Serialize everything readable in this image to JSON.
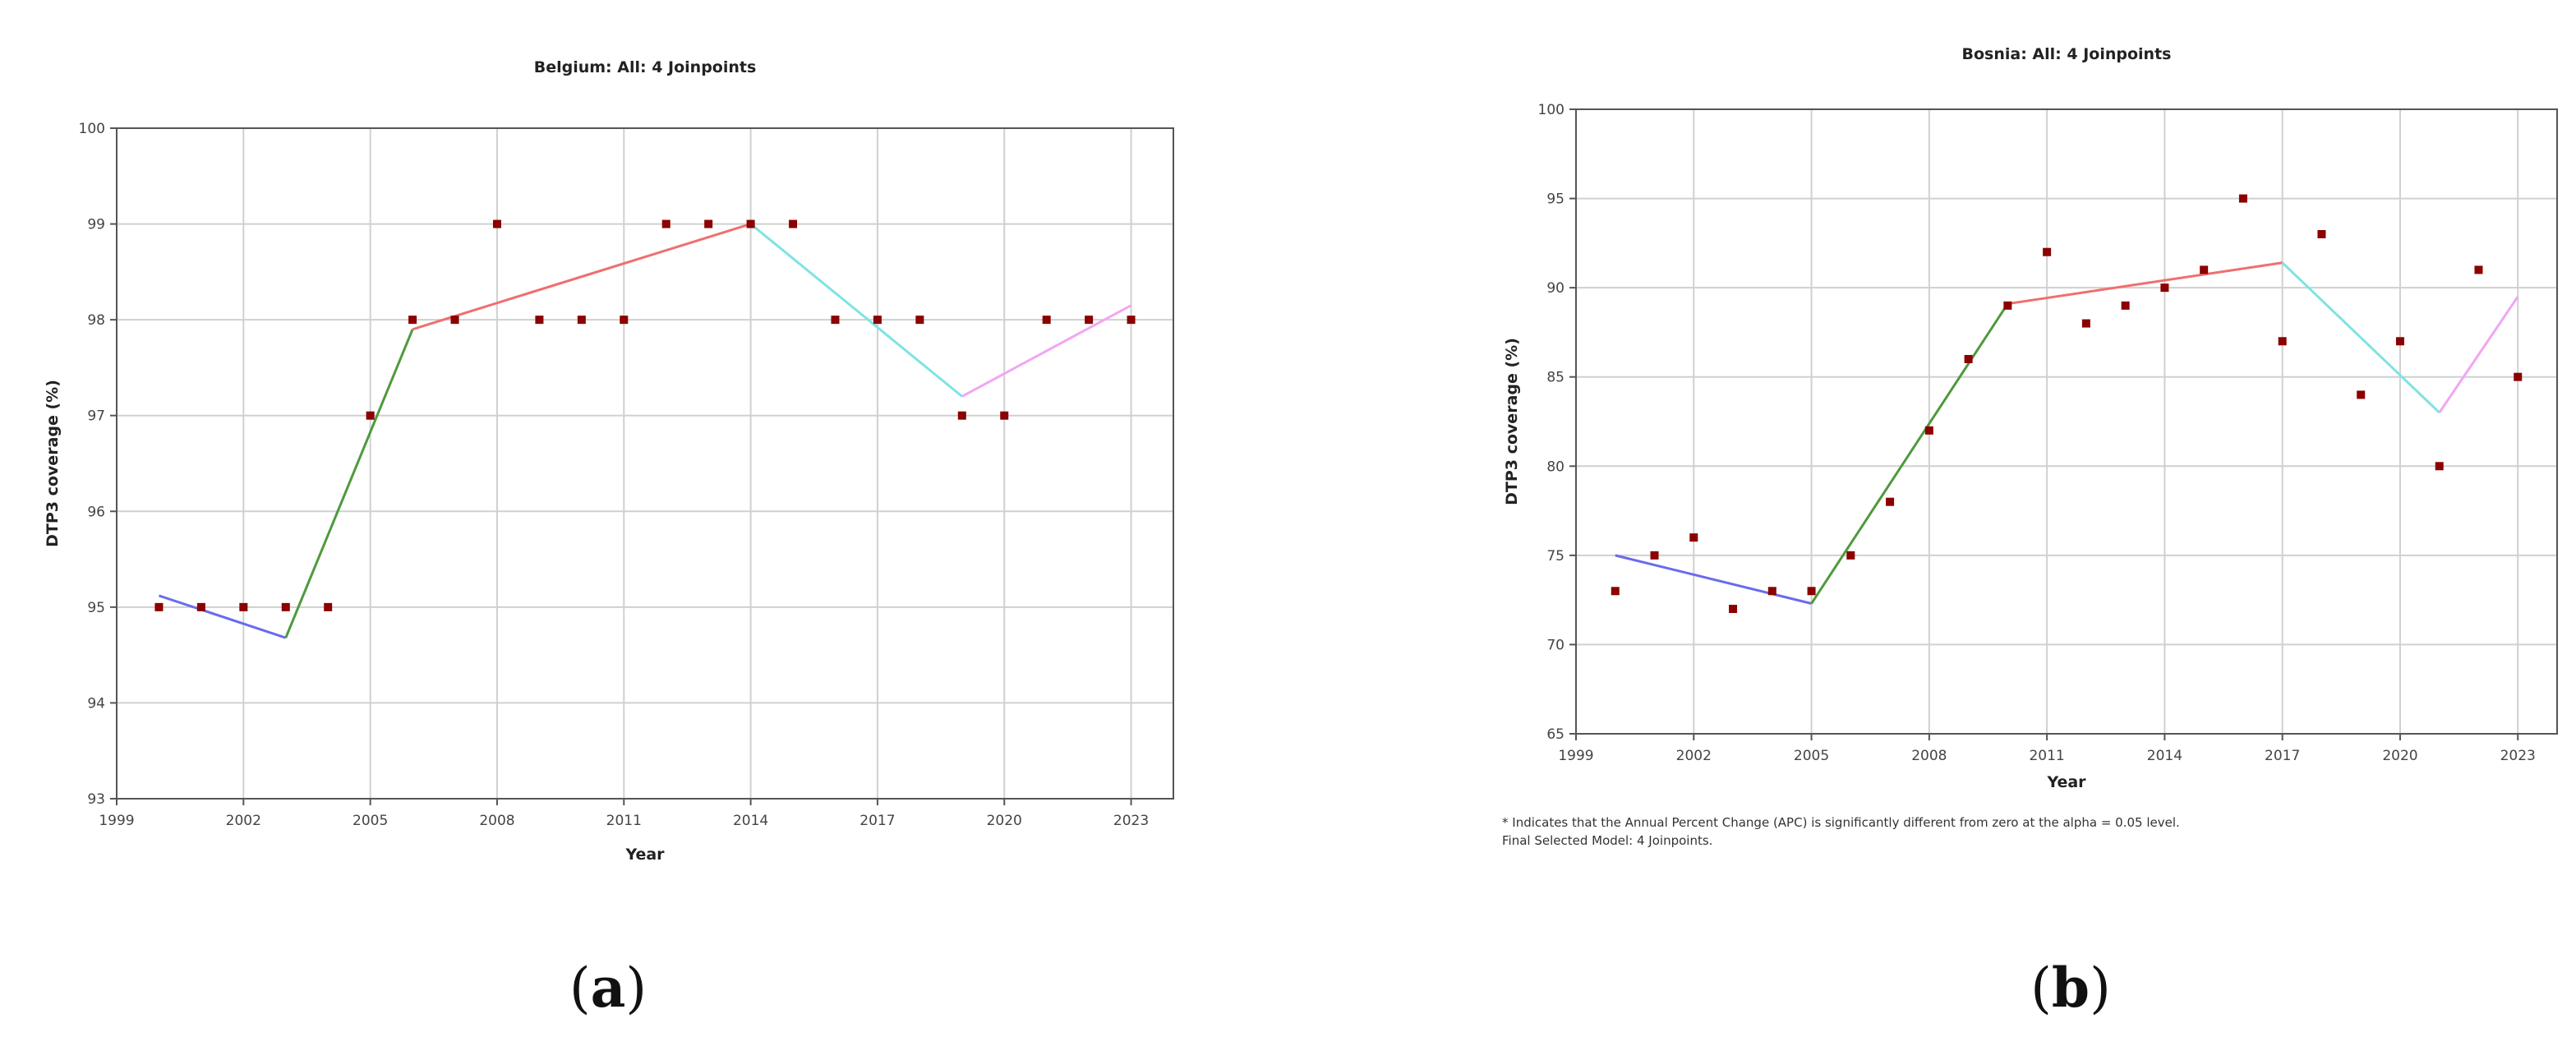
{
  "chart_data": [
    {
      "type": "scatter",
      "title": "Belgium: All: 4 Joinpoints",
      "xlabel": "Year",
      "ylabel": "DTP3 coverage (%)",
      "xlim": [
        1999,
        2024
      ],
      "ylim": [
        93,
        100
      ],
      "xticks": [
        "1999",
        "2002",
        "2005",
        "2008",
        "2011",
        "2014",
        "2017",
        "2020",
        "2023"
      ],
      "yticks": [
        "93",
        "94",
        "95",
        "96",
        "97",
        "98",
        "99",
        "100"
      ],
      "grid": true,
      "points": {
        "color": "#8b0000",
        "x": [
          2000,
          2001,
          2002,
          2003,
          2004,
          2005,
          2006,
          2007,
          2008,
          2009,
          2010,
          2011,
          2012,
          2013,
          2014,
          2015,
          2016,
          2017,
          2018,
          2019,
          2020,
          2021,
          2022,
          2023
        ],
        "y": [
          95,
          95,
          95,
          95,
          95,
          97,
          98,
          98,
          99,
          98,
          98,
          98,
          99,
          99,
          99,
          99,
          98,
          98,
          98,
          97,
          97,
          98,
          98,
          98
        ]
      },
      "segments": [
        {
          "color": "#6a6aee",
          "x": [
            2000,
            2003
          ],
          "y": [
            95.12,
            94.68
          ]
        },
        {
          "color": "#4e9a3c",
          "x": [
            2003,
            2006
          ],
          "y": [
            94.68,
            97.9
          ]
        },
        {
          "color": "#ef6f6f",
          "x": [
            2006,
            2014
          ],
          "y": [
            97.9,
            99.0
          ]
        },
        {
          "color": "#7fe3e3",
          "x": [
            2014,
            2019
          ],
          "y": [
            99.0,
            97.2
          ]
        },
        {
          "color": "#f2a6f2",
          "x": [
            2019,
            2023
          ],
          "y": [
            97.2,
            98.15
          ]
        }
      ],
      "caption": "a"
    },
    {
      "type": "scatter",
      "title": "Bosnia: All: 4 Joinpoints",
      "xlabel": "Year",
      "ylabel": "DTP3 coverage (%)",
      "xlim": [
        1999,
        2024
      ],
      "ylim": [
        65,
        100
      ],
      "xticks": [
        "1999",
        "2002",
        "2005",
        "2008",
        "2011",
        "2014",
        "2017",
        "2020",
        "2023"
      ],
      "yticks": [
        "65",
        "70",
        "75",
        "80",
        "85",
        "90",
        "95",
        "100"
      ],
      "grid": true,
      "points": {
        "color": "#8b0000",
        "x": [
          2000,
          2001,
          2002,
          2003,
          2004,
          2005,
          2006,
          2007,
          2008,
          2009,
          2010,
          2011,
          2012,
          2013,
          2014,
          2015,
          2016,
          2017,
          2018,
          2019,
          2020,
          2021,
          2022,
          2023
        ],
        "y": [
          73,
          75,
          76,
          72,
          73,
          73,
          75,
          78,
          82,
          86,
          89,
          92,
          88,
          89,
          90,
          91,
          95,
          87,
          93,
          84,
          87,
          80,
          91,
          85
        ]
      },
      "segments": [
        {
          "color": "#6a6aee",
          "x": [
            2000,
            2005
          ],
          "y": [
            75.0,
            72.3
          ]
        },
        {
          "color": "#4e9a3c",
          "x": [
            2005,
            2010
          ],
          "y": [
            72.3,
            89.1
          ]
        },
        {
          "color": "#ef6f6f",
          "x": [
            2010,
            2017
          ],
          "y": [
            89.1,
            91.4
          ]
        },
        {
          "color": "#7fe3e3",
          "x": [
            2017,
            2021
          ],
          "y": [
            91.4,
            83.0
          ]
        },
        {
          "color": "#f2a6f2",
          "x": [
            2021,
            2023
          ],
          "y": [
            83.0,
            89.5
          ]
        }
      ],
      "footnotes": [
        "* Indicates that the Annual Percent Change (APC) is significantly different from zero at the alpha = 0.05 level.",
        "Final Selected Model: 4 Joinpoints."
      ],
      "caption": "b"
    }
  ]
}
